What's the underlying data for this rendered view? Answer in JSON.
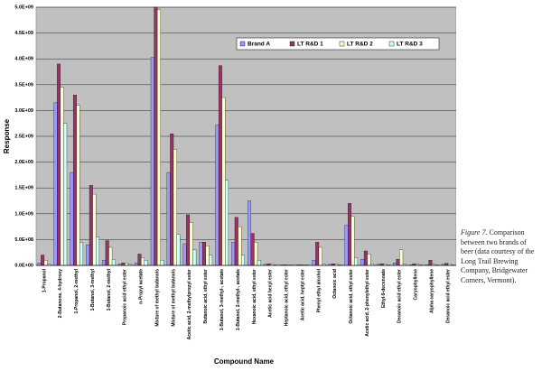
{
  "chart_data": {
    "type": "bar",
    "x_label": "Compound Name",
    "y_label": "Response",
    "categories": [
      "1-Propanol",
      "2-Butanone, 4-hydroxy",
      "1-Propanol, 2-methyl",
      "1-Butanol, 3-methyl",
      "1-Butanol, 2-methyl",
      "Propanoic acid ethyl ester",
      "n-Propyl acetate",
      "Mixture of methyl butanols",
      "Mixture of methyl butanols",
      "Acetic acid, 2-methylpropyl ester",
      "Butanoic acid, ethyl ester",
      "1-Butanol, 3-methyl-, acetate",
      "1-Butanol, 2-methyl-, acetate",
      "Hexanoic acid, ethyl ester",
      "Acetic acid hexyl ester",
      "Heptanoic acid, ethyl ester",
      "Acetic acid, heptyl ester",
      "Phenyl ethyl alcohol",
      "Octanoic acid",
      "Octanoic acid, ethyl ester",
      "Acetic acid, 2-phenylethyl ester",
      "Ethyl-9-decenoate",
      "Decanoic acid ethyl ester",
      "Caryophyllene",
      "Alpha caryophyllene",
      "Decanoic acid ethyl ester"
    ],
    "series": [
      {
        "name": "Brand A",
        "color": "#9999ff",
        "values": [
          50000000,
          3150000000,
          1800000000,
          400000000,
          100000000,
          30000000,
          50000000,
          4030000000,
          1800000000,
          420000000,
          450000000,
          2720000000,
          450000000,
          1250000000,
          20000000,
          10000000,
          10000000,
          100000000,
          20000000,
          780000000,
          120000000,
          20000000,
          50000000,
          10000000,
          10000000,
          20000000
        ]
      },
      {
        "name": "LT R&D 1",
        "color": "#993366",
        "values": [
          200000000,
          3900000000,
          3300000000,
          1550000000,
          480000000,
          50000000,
          220000000,
          5000000000,
          2550000000,
          980000000,
          450000000,
          3870000000,
          930000000,
          620000000,
          30000000,
          10000000,
          10000000,
          450000000,
          30000000,
          1200000000,
          280000000,
          30000000,
          120000000,
          30000000,
          100000000,
          40000000
        ]
      },
      {
        "name": "LT R&D 2",
        "color": "#ffffcc",
        "values": [
          100000000,
          3450000000,
          3100000000,
          1380000000,
          350000000,
          50000000,
          150000000,
          4950000000,
          2250000000,
          830000000,
          380000000,
          3250000000,
          750000000,
          450000000,
          20000000,
          10000000,
          10000000,
          350000000,
          20000000,
          950000000,
          220000000,
          20000000,
          300000000,
          20000000,
          20000000,
          30000000
        ]
      },
      {
        "name": "LT R&D 3",
        "color": "#ccffff",
        "values": [
          20000000,
          2750000000,
          450000000,
          550000000,
          120000000,
          20000000,
          100000000,
          100000000,
          600000000,
          300000000,
          200000000,
          1650000000,
          200000000,
          100000000,
          10000000,
          10000000,
          10000000,
          20000000,
          10000000,
          150000000,
          30000000,
          10000000,
          20000000,
          10000000,
          10000000,
          10000000
        ]
      }
    ],
    "ylim": [
      0,
      5000000000
    ],
    "yticks": [
      {
        "value": 0,
        "label": "0.0E+00"
      },
      {
        "value": 500000000,
        "label": "5.0E+08"
      },
      {
        "value": 1000000000,
        "label": "1.0E+09"
      },
      {
        "value": 1500000000,
        "label": "1.5E+09"
      },
      {
        "value": 2000000000,
        "label": "2.0E+09"
      },
      {
        "value": 2500000000,
        "label": "2.5E+09"
      },
      {
        "value": 3000000000,
        "label": "3.0E+09"
      },
      {
        "value": 3500000000,
        "label": "3.5E+09"
      },
      {
        "value": 4000000000,
        "label": "4.0E+09"
      },
      {
        "value": 4500000000,
        "label": "4.5E+09"
      },
      {
        "value": 5000000000,
        "label": "5.0E+09"
      }
    ],
    "grid": true,
    "legend": "top-right"
  },
  "caption": {
    "label": "Figure 7.",
    "text": "Comparison between two brands of beer (data courtesy of the Long Trail Brewing Company, Bridgewater Corners, Vermont)."
  }
}
